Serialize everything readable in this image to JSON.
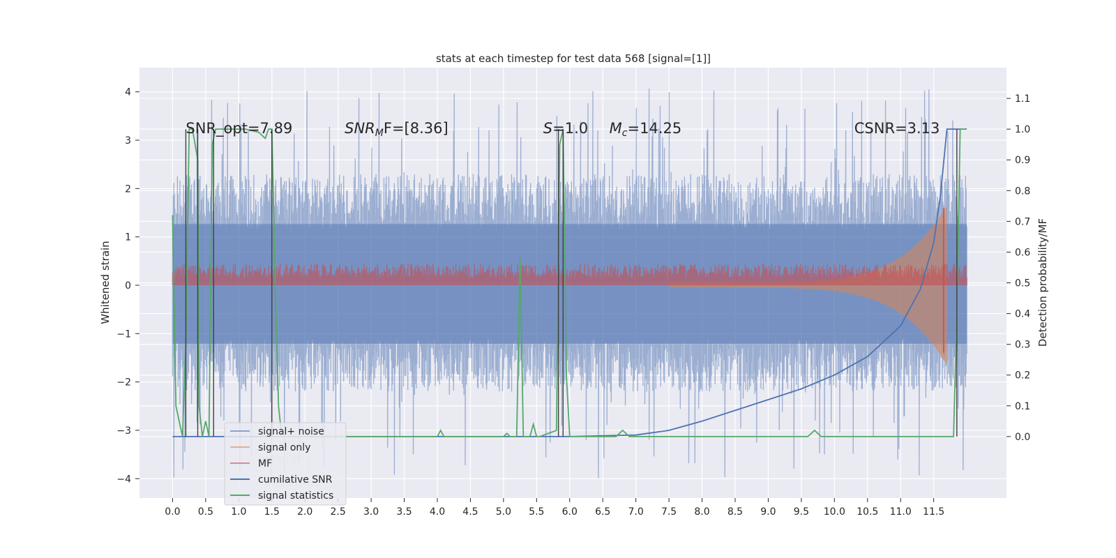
{
  "chart_data": {
    "type": "line",
    "title": "stats at each timestep for test data 568 [signal=[1]]",
    "xlabel": "",
    "ylabel_left": "Whitened strain",
    "ylabel_right": "Detection probability/MF",
    "xlim": [
      -0.5,
      12.6
    ],
    "ylim_left": [
      -4.4,
      4.5
    ],
    "ylim_right": [
      -0.2,
      1.2
    ],
    "x_ticks": [
      "0.0",
      "0.5",
      "1.0",
      "1.5",
      "2.0",
      "2.5",
      "3.0",
      "3.5",
      "4.0",
      "4.5",
      "5.0",
      "5.5",
      "6.0",
      "6.5",
      "7.0",
      "7.5",
      "8.0",
      "8.5",
      "9.0",
      "9.5",
      "10.0",
      "10.5",
      "11.0",
      "11.5"
    ],
    "y_ticks_left": [
      "4",
      "3",
      "2",
      "1",
      "0",
      "−1",
      "−2",
      "−3",
      "−4"
    ],
    "y_ticks_right": [
      "1.1",
      "1.0",
      "0.9",
      "0.8",
      "0.7",
      "0.6",
      "0.5",
      "0.4",
      "0.3",
      "0.2",
      "0.1",
      "0.0"
    ],
    "grid": true,
    "background": "#eaeaf2",
    "annotations": [
      {
        "text": "SNR_opt=7.89",
        "x": 0.2,
        "y": 1.0
      },
      {
        "text": "SNR",
        "sub": "M",
        "suffix": "F=[8.36]",
        "italic": true,
        "x": 2.6,
        "y": 1.0
      },
      {
        "text": "S",
        "suffix": "=1.0",
        "italic": true,
        "x": 5.6,
        "y": 1.0
      },
      {
        "text": "M",
        "sub": "c",
        "suffix": "=14.25",
        "italic": true,
        "x": 6.6,
        "y": 1.0
      },
      {
        "text": "CSNR=3.13",
        "x": 10.3,
        "y": 1.0
      }
    ],
    "legend": {
      "position": "lower-left",
      "entries": [
        {
          "label": "signal+ noise",
          "color": "#4c72b0"
        },
        {
          "label": "signal only",
          "color": "#dd8452"
        },
        {
          "label": "MF",
          "color": "#c44e52"
        },
        {
          "label": "cumilative SNR",
          "color": "#4c72b0"
        },
        {
          "label": "signal statistics",
          "color": "#55a868"
        }
      ]
    },
    "ghost_legend": [
      {
        "label": "noise",
        "x": 1.6,
        "y": -3.33
      },
      {
        "label": "nal only",
        "x": 1.3,
        "y": -3.66
      },
      {
        "label": "nal statistics",
        "x": 1.3,
        "y": -4.15
      }
    ],
    "series": [
      {
        "name": "signal+ noise",
        "axis": "left",
        "color": "#4c72b0",
        "style": "noise",
        "x_range": [
          0.0,
          12.0
        ],
        "band_low": -2.2,
        "band_high": 2.3,
        "extreme_low": -4.0,
        "extreme_high": 4.1
      },
      {
        "name": "signal only",
        "axis": "left",
        "color": "#dd8452",
        "style": "chirp",
        "x_range": [
          7.5,
          11.7
        ],
        "peak_amplitude": 1.6
      },
      {
        "name": "MF",
        "axis": "left",
        "color": "#c44e52",
        "style": "band",
        "x_range": [
          0.0,
          12.0
        ],
        "band_low": 0.0,
        "band_high": 0.45,
        "spike_x": 11.65,
        "spike_low": -1.4,
        "spike_high": 1.6
      },
      {
        "name": "cumilative SNR",
        "axis": "right",
        "color": "#4c72b0",
        "style": "line",
        "x": [
          0.0,
          0.5,
          1.0,
          2.0,
          3.0,
          4.0,
          5.0,
          6.0,
          7.0,
          7.5,
          8.0,
          8.5,
          9.0,
          9.5,
          10.0,
          10.5,
          11.0,
          11.3,
          11.5,
          11.6,
          11.7,
          12.0
        ],
        "y": [
          0.0,
          0.0,
          0.0,
          0.0,
          0.0,
          0.0,
          0.0,
          0.0,
          0.005,
          0.02,
          0.05,
          0.085,
          0.12,
          0.155,
          0.2,
          0.26,
          0.36,
          0.48,
          0.63,
          0.78,
          1.0,
          1.0
        ]
      },
      {
        "name": "signal statistics",
        "axis": "right",
        "color": "#55a868",
        "style": "line",
        "x": [
          0.0,
          0.05,
          0.1,
          0.15,
          0.2,
          0.25,
          0.3,
          0.38,
          0.4,
          0.45,
          0.5,
          0.55,
          0.6,
          0.65,
          0.7,
          0.9,
          1.0,
          1.1,
          1.3,
          1.4,
          1.45,
          1.5,
          1.55,
          1.6,
          1.65,
          2.0,
          3.0,
          4.0,
          4.05,
          4.1,
          4.2,
          5.0,
          5.05,
          5.1,
          5.2,
          5.25,
          5.3,
          5.4,
          5.45,
          5.5,
          5.55,
          5.8,
          5.85,
          5.9,
          5.95,
          6.0,
          6.1,
          6.2,
          6.7,
          6.8,
          6.9,
          7.0,
          8.0,
          9.0,
          9.6,
          9.7,
          9.8,
          10.0,
          11.0,
          11.8,
          11.85,
          11.9,
          12.0
        ],
        "y": [
          0.72,
          0.1,
          0.05,
          0.0,
          0.3,
          1.0,
          1.0,
          0.9,
          0.1,
          0.0,
          0.05,
          0.0,
          0.95,
          1.0,
          1.0,
          1.0,
          1.0,
          1.0,
          0.99,
          0.97,
          1.0,
          1.0,
          0.5,
          0.1,
          0.0,
          0.0,
          0.0,
          0.0,
          0.02,
          0.0,
          0.0,
          0.0,
          0.01,
          0.0,
          0.0,
          0.58,
          0.0,
          0.0,
          0.04,
          0.0,
          0.0,
          0.02,
          0.95,
          1.0,
          0.2,
          0.0,
          0.0,
          0.0,
          0.0,
          0.02,
          0.0,
          0.0,
          0.0,
          0.0,
          0.0,
          0.02,
          0.0,
          0.0,
          0.0,
          0.0,
          0.4,
          1.0,
          1.0
        ]
      }
    ],
    "vertical_lines": [
      {
        "x": 0.2,
        "axis_y": [
          -0.0,
          1.0
        ]
      },
      {
        "x": 0.38,
        "axis_y": [
          -0.0,
          1.0
        ]
      },
      {
        "x": 0.62,
        "axis_y": [
          -0.0,
          1.0
        ]
      },
      {
        "x": 1.5,
        "axis_y": [
          -0.0,
          1.0
        ]
      },
      {
        "x": 5.83,
        "axis_y": [
          -0.0,
          1.0
        ]
      },
      {
        "x": 5.9,
        "axis_y": [
          -0.0,
          1.0
        ]
      },
      {
        "x": 11.85,
        "axis_y": [
          -0.0,
          1.0
        ]
      }
    ]
  }
}
